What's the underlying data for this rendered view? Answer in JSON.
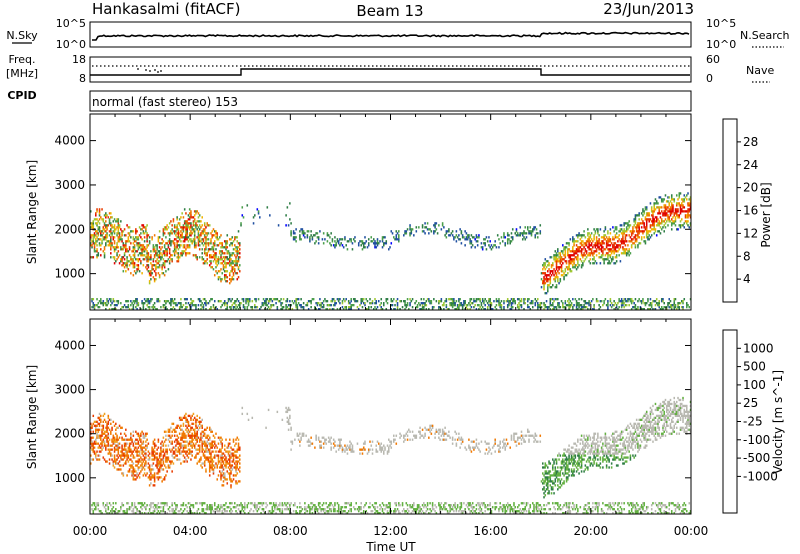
{
  "header": {
    "station": "Hankasalmi (fitACF)",
    "beam": "Beam 13",
    "date": "23/Jun/2013"
  },
  "noise_panel": {
    "left_label": "N.Sky",
    "right_label": "N.Search",
    "left_ticks": [
      "10^5",
      "10^0"
    ],
    "right_ticks": [
      "10^5",
      "10^0"
    ]
  },
  "freq_panel": {
    "left_label": "Freq.",
    "left_unit": "[MHz]",
    "left_ticks": [
      "18",
      "8"
    ],
    "right_label": "Nave",
    "right_ticks": [
      "60",
      "0"
    ],
    "cpid_label": "CPID",
    "cpid_text": "normal (fast stereo) 153"
  },
  "colors": {
    "power_scale": [
      "#0000ff",
      "#1f4fa0",
      "#2e7d45",
      "#4a9e4a",
      "#a0c832",
      "#f0b400",
      "#f07800",
      "#e83c00",
      "#e00000"
    ],
    "velocity_scale": [
      "#0000ff",
      "#1f4fa0",
      "#2e7d45",
      "#62b040",
      "#b8b8b0",
      "#b8b8b0",
      "#f0a020",
      "#f07800",
      "#e83c00",
      "#e00000"
    ]
  },
  "chart_data": [
    {
      "type": "heatmap",
      "name": "power",
      "xlabel": "Time UT",
      "ylabel": "Slant Range [km]",
      "xticks": [
        "00:00",
        "04:00",
        "08:00",
        "12:00",
        "16:00",
        "20:00",
        "00:00"
      ],
      "xlim_hours": [
        0,
        24
      ],
      "yticks": [
        "1000",
        "2000",
        "3000",
        "4000"
      ],
      "ylim_km": [
        180,
        4600
      ],
      "colorbar": {
        "label": "Power [dB]",
        "ticks": [
          "4",
          "8",
          "12",
          "16",
          "20",
          "24",
          "28"
        ],
        "range": [
          0,
          32
        ]
      },
      "features": [
        {
          "t": [
            0.0,
            2.3
          ],
          "range": [
            1200,
            2400
          ],
          "level": "mixed 8-28"
        },
        {
          "t": [
            2.3,
            6.0
          ],
          "range": [
            1000,
            2200
          ],
          "level": "mixed 8-28"
        },
        {
          "t": [
            8.0,
            11.0
          ],
          "range": [
            1700,
            2000
          ],
          "level": "4-12"
        },
        {
          "t": [
            11.0,
            18.0
          ],
          "range": [
            1500,
            2200
          ],
          "level": "4-16"
        },
        {
          "t": [
            18.0,
            24.0
          ],
          "range": [
            800,
            2700
          ],
          "level": "8-28"
        }
      ]
    },
    {
      "type": "heatmap",
      "name": "velocity",
      "xlabel": "Time UT",
      "ylabel": "Slant Range [km]",
      "xticks": [
        "00:00",
        "04:00",
        "08:00",
        "12:00",
        "16:00",
        "20:00",
        "00:00"
      ],
      "xlim_hours": [
        0,
        24
      ],
      "yticks": [
        "1000",
        "2000",
        "3000",
        "4000"
      ],
      "ylim_km": [
        180,
        4600
      ],
      "colorbar": {
        "label": "Velocity [m s^-1]",
        "ticks": [
          "1000",
          "500",
          "100",
          "25",
          "-25",
          "-100",
          "-500",
          "-1000"
        ],
        "range": [
          -1000,
          1000
        ]
      },
      "features": [
        {
          "t": [
            0.0,
            6.0
          ],
          "range": [
            1000,
            2400
          ],
          "velocity": "-100 to -1000"
        },
        {
          "t": [
            8.0,
            18.0
          ],
          "range": [
            1500,
            2200
          ],
          "velocity": "-25 to 25"
        },
        {
          "t": [
            18.0,
            24.0
          ],
          "range": [
            900,
            2700
          ],
          "velocity": "25 to 500 / -25 to 25"
        }
      ]
    }
  ]
}
